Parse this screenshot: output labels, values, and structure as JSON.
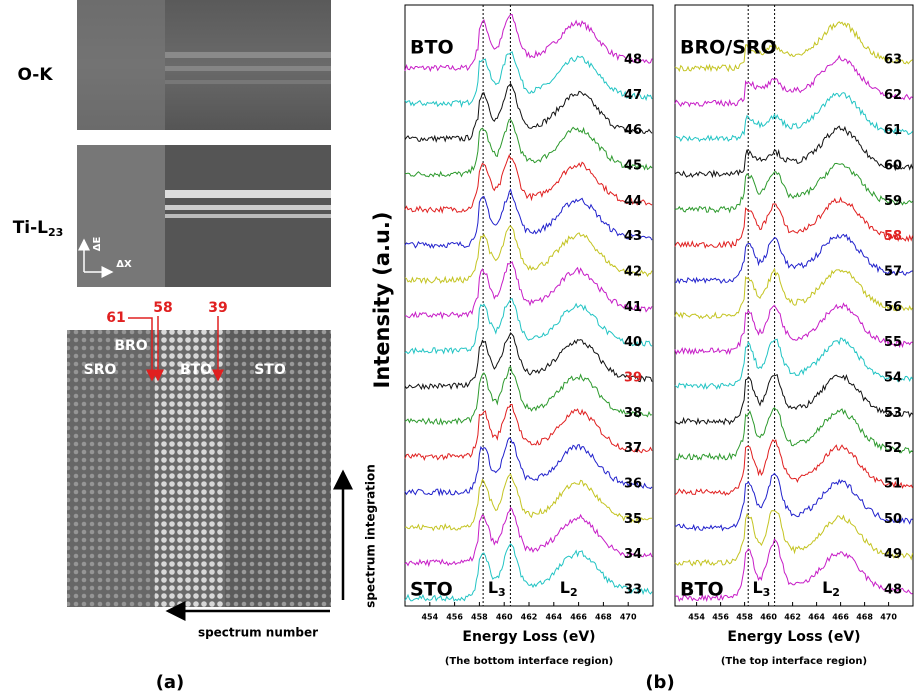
{
  "panel_a": {
    "ok_label": "O-K",
    "ti_label": {
      "main": "Ti-L",
      "sub": "23"
    },
    "axis_e": "ΔE",
    "axis_x": "ΔX",
    "markers": [
      "61",
      "58",
      "39"
    ],
    "regions": [
      "BRO",
      "SRO",
      "BTO",
      "STO"
    ],
    "integration_label": "spectrum integration",
    "number_label": "spectrum number",
    "caption": "(a)"
  },
  "panel_b": {
    "y_label": "Intensity (a.u.)",
    "caption": "(b)",
    "plots": [
      {
        "top_region": "BTO",
        "bottom_region": "STO",
        "edge_labels": [
          {
            "main": "L",
            "sub": "3"
          },
          {
            "main": "L",
            "sub": "2"
          }
        ],
        "xticks": [
          "454",
          "456",
          "458",
          "460",
          "462",
          "464",
          "466",
          "468",
          "470"
        ],
        "x_label": "Energy Loss (eV)",
        "subtitle": "(The bottom interface region)",
        "spectra": [
          {
            "label": "48",
            "color": "#c71ec7"
          },
          {
            "label": "47",
            "color": "#22c4c4"
          },
          {
            "label": "46",
            "color": "#111111"
          },
          {
            "label": "45",
            "color": "#2e9a2e"
          },
          {
            "label": "44",
            "color": "#e02020"
          },
          {
            "label": "43",
            "color": "#2222cc"
          },
          {
            "label": "42",
            "color": "#c4c422"
          },
          {
            "label": "41",
            "color": "#c71ec7"
          },
          {
            "label": "40",
            "color": "#22c4c4"
          },
          {
            "label": "39",
            "color": "#111111",
            "highlight": true
          },
          {
            "label": "38",
            "color": "#2e9a2e"
          },
          {
            "label": "37",
            "color": "#e02020"
          },
          {
            "label": "36",
            "color": "#2222cc"
          },
          {
            "label": "35",
            "color": "#c4c422"
          },
          {
            "label": "34",
            "color": "#c71ec7"
          },
          {
            "label": "33",
            "color": "#22c4c4"
          }
        ]
      },
      {
        "top_region": "BRO/SRO",
        "bottom_region": "BTO",
        "edge_labels": [
          {
            "main": "L",
            "sub": "3"
          },
          {
            "main": "L",
            "sub": "2"
          }
        ],
        "xticks": [
          "454",
          "456",
          "458",
          "460",
          "462",
          "464",
          "466",
          "468",
          "470"
        ],
        "x_label": "Energy Loss (eV)",
        "subtitle": "(The top interface region)",
        "spectra": [
          {
            "label": "63",
            "color": "#c4c422"
          },
          {
            "label": "62",
            "color": "#c71ec7"
          },
          {
            "label": "61",
            "color": "#22c4c4"
          },
          {
            "label": "60",
            "color": "#111111"
          },
          {
            "label": "59",
            "color": "#2e9a2e"
          },
          {
            "label": "58",
            "color": "#e02020",
            "highlight": true
          },
          {
            "label": "57",
            "color": "#2222cc"
          },
          {
            "label": "56",
            "color": "#c4c422"
          },
          {
            "label": "55",
            "color": "#c71ec7"
          },
          {
            "label": "54",
            "color": "#22c4c4"
          },
          {
            "label": "53",
            "color": "#111111"
          },
          {
            "label": "52",
            "color": "#2e9a2e"
          },
          {
            "label": "51",
            "color": "#e02020"
          },
          {
            "label": "50",
            "color": "#2222cc"
          },
          {
            "label": "49",
            "color": "#c4c422"
          },
          {
            "label": "48",
            "color": "#c71ec7"
          }
        ]
      }
    ]
  }
}
